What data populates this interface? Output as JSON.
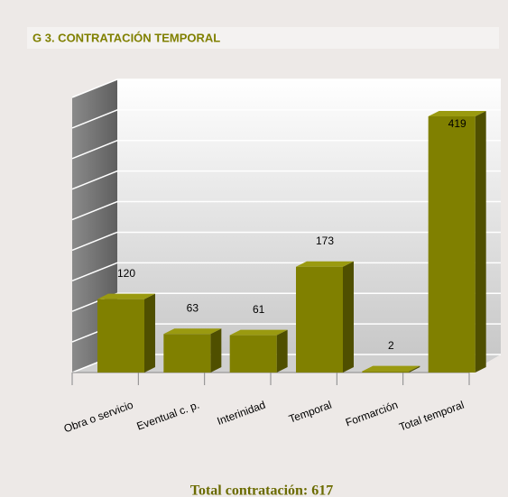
{
  "chart_data": {
    "type": "bar3d",
    "title": "G 3. CONTRATACIÓN TEMPORAL",
    "categories": [
      "Obra o servicio",
      "Eventual  c. p.",
      "Interinidad",
      "Temporal",
      "Formarción",
      "Total temporal"
    ],
    "values": [
      120,
      63,
      61,
      173,
      2,
      419
    ],
    "color": "#808000",
    "ylim": [
      0,
      450
    ],
    "yticks": [
      0,
      50,
      100,
      150,
      200,
      250,
      300,
      350,
      400,
      450
    ],
    "grid": true,
    "footer": "Total contratación: 617"
  }
}
